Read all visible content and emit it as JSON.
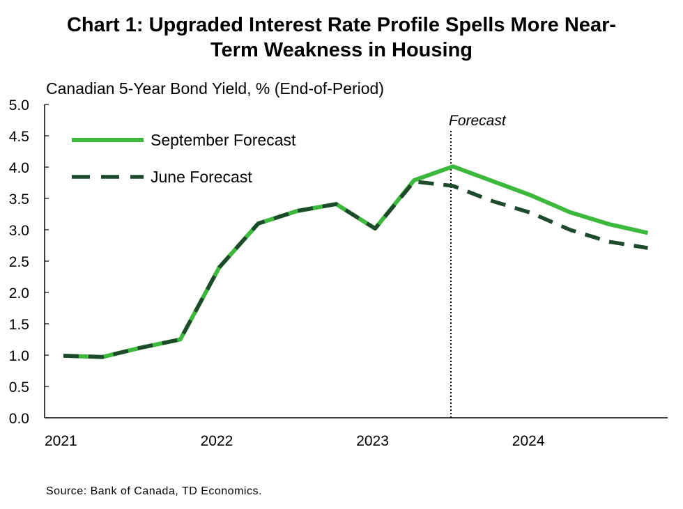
{
  "title_line1": "Chart 1: Upgraded Interest Rate Profile Spells More Near-",
  "title_line2": "Term Weakness in Housing",
  "source": "Source: Bank of Canada, TD Economics.",
  "chart_data": {
    "type": "line",
    "subtitle": "Canadian 5-Year Bond Yield, % (End-of-Period)",
    "x": [
      "2021Q1",
      "2021Q2",
      "2021Q3",
      "2021Q4",
      "2022Q1",
      "2022Q2",
      "2022Q3",
      "2022Q4",
      "2023Q1",
      "2023Q2",
      "2023Q3",
      "2023Q4",
      "2024Q1",
      "2024Q2",
      "2024Q3",
      "2024Q4"
    ],
    "x_tick_labels": [
      "2021",
      "2022",
      "2023",
      "2024"
    ],
    "ylim": [
      0,
      5
    ],
    "y_ticks": [
      "0.0",
      "0.5",
      "1.0",
      "1.5",
      "2.0",
      "2.5",
      "3.0",
      "3.5",
      "4.0",
      "4.5",
      "5.0"
    ],
    "forecast_label": "Forecast",
    "forecast_start": "2023Q3",
    "grid": false,
    "legend_position": "top-left",
    "series": [
      {
        "name": "September Forecast",
        "color": "#3cb83c",
        "style": "solid",
        "values": [
          0.99,
          0.97,
          1.12,
          1.25,
          2.4,
          3.1,
          3.3,
          3.41,
          3.02,
          3.79,
          4.01,
          3.78,
          3.55,
          3.28,
          3.09,
          2.95
        ]
      },
      {
        "name": "June Forecast",
        "color": "#1d4a2b",
        "style": "dashed",
        "values": [
          0.99,
          0.97,
          1.12,
          1.25,
          2.4,
          3.1,
          3.3,
          3.41,
          3.02,
          3.77,
          3.7,
          3.46,
          3.27,
          3.0,
          2.81,
          2.71
        ]
      }
    ]
  }
}
